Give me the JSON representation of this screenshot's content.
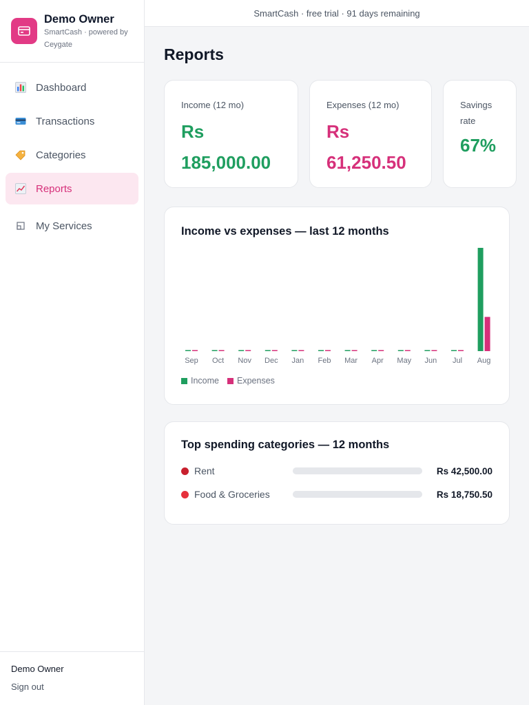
{
  "topbar": {
    "text": "SmartCash · free trial · 91 days remaining"
  },
  "brand": {
    "name": "Demo Owner",
    "subtitle": "SmartCash · powered by Ceygate",
    "accent": "#e23a85"
  },
  "nav": [
    {
      "label": "Dashboard",
      "icon": "bar-chart-icon",
      "active": false
    },
    {
      "label": "Transactions",
      "icon": "credit-card-icon",
      "active": false
    },
    {
      "label": "Categories",
      "icon": "tag-icon",
      "active": false
    },
    {
      "label": "Reports",
      "icon": "trend-chart-icon",
      "active": true
    },
    {
      "label": "My Services",
      "icon": "window-icon",
      "active": false
    }
  ],
  "user": {
    "name": "Demo Owner",
    "signout_label": "Sign out"
  },
  "page": {
    "title": "Reports"
  },
  "stats": {
    "income": {
      "label": "Income (12 mo)",
      "currency": "Rs",
      "amount": "185,000.00",
      "color": "#1f9e5f"
    },
    "expenses": {
      "label": "Expenses (12 mo)",
      "currency": "Rs",
      "amount": "61,250.50",
      "color": "#d6307a"
    },
    "savings": {
      "label": "Savings rate",
      "value": "67%",
      "color": "#1f9e5f"
    }
  },
  "chart": {
    "title": "Income vs expenses — last 12 months"
  },
  "chart_data": {
    "type": "bar",
    "categories": [
      "Sep",
      "Oct",
      "Nov",
      "Dec",
      "Jan",
      "Feb",
      "Mar",
      "Apr",
      "May",
      "Jun",
      "Jul",
      "Aug"
    ],
    "series": [
      {
        "name": "Income",
        "color": "#1f9e5f",
        "values": [
          0,
          0,
          0,
          0,
          0,
          0,
          0,
          0,
          0,
          0,
          0,
          185000
        ]
      },
      {
        "name": "Expenses",
        "color": "#d6307a",
        "values": [
          0,
          0,
          0,
          0,
          0,
          0,
          0,
          0,
          0,
          0,
          0,
          61250.5
        ]
      }
    ],
    "grid": false,
    "legend": "bottom-left"
  },
  "top_spending": {
    "title": "Top spending categories — 12 months",
    "items": [
      {
        "name": "Rent",
        "amount": "Rs 42,500.00",
        "color": "#c8202e"
      },
      {
        "name": "Food & Groceries",
        "amount": "Rs 18,750.50",
        "color": "#e6303c"
      }
    ]
  }
}
